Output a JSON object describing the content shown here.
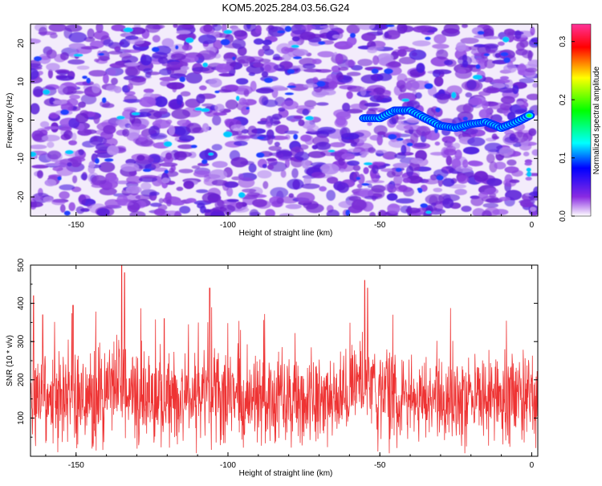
{
  "title": "KOM5.2025.284.03.56.G24",
  "chart_data": [
    {
      "type": "heatmap",
      "xlabel": "Height of straight line (km)",
      "ylabel": "Frequency (Hz)",
      "xlim": [
        -165,
        2
      ],
      "ylim": [
        -25,
        25
      ],
      "xticks": [
        -150,
        -100,
        -50,
        0
      ],
      "yticks": [
        -20,
        -10,
        0,
        10,
        20
      ],
      "colorbar": {
        "label": "Normalized spectral amplitude",
        "range": [
          0.0,
          0.33
        ],
        "ticks": [
          "0.0",
          "0.1",
          "0.2",
          "0.3"
        ],
        "tick_values": [
          0.0,
          0.1,
          0.2,
          0.3
        ],
        "colors": [
          "#ffffff",
          "#8a2be2",
          "#0000ff",
          "#00ffff",
          "#00ff00",
          "#ffff00",
          "#ff0000",
          "#ff3399"
        ]
      },
      "signal_track": {
        "description_points_x": [
          -55,
          -50,
          -45,
          -40,
          -35,
          -30,
          -25,
          -20,
          -15,
          -10,
          -5,
          0
        ],
        "description_points_y": [
          0.5,
          0.5,
          2.5,
          2.5,
          0.5,
          -1.5,
          -2.0,
          -1.0,
          -0.5,
          -2.0,
          -0.5,
          1.5
        ]
      }
    },
    {
      "type": "line",
      "xlabel": "Height of straight line (km)",
      "ylabel": "SNR (10 * v/v)",
      "xlim": [
        -165,
        2
      ],
      "ylim": [
        0,
        500
      ],
      "xticks": [
        -150,
        -100,
        -50,
        0
      ],
      "yticks": [
        100,
        200,
        300,
        400,
        500
      ],
      "color": "#ee3333",
      "peaks_x": [
        -164,
        -161,
        -151,
        -135,
        -134,
        -121,
        -106,
        -55,
        -54
      ],
      "peaks_y": [
        420,
        370,
        395,
        500,
        480,
        360,
        440,
        460,
        440
      ]
    }
  ]
}
